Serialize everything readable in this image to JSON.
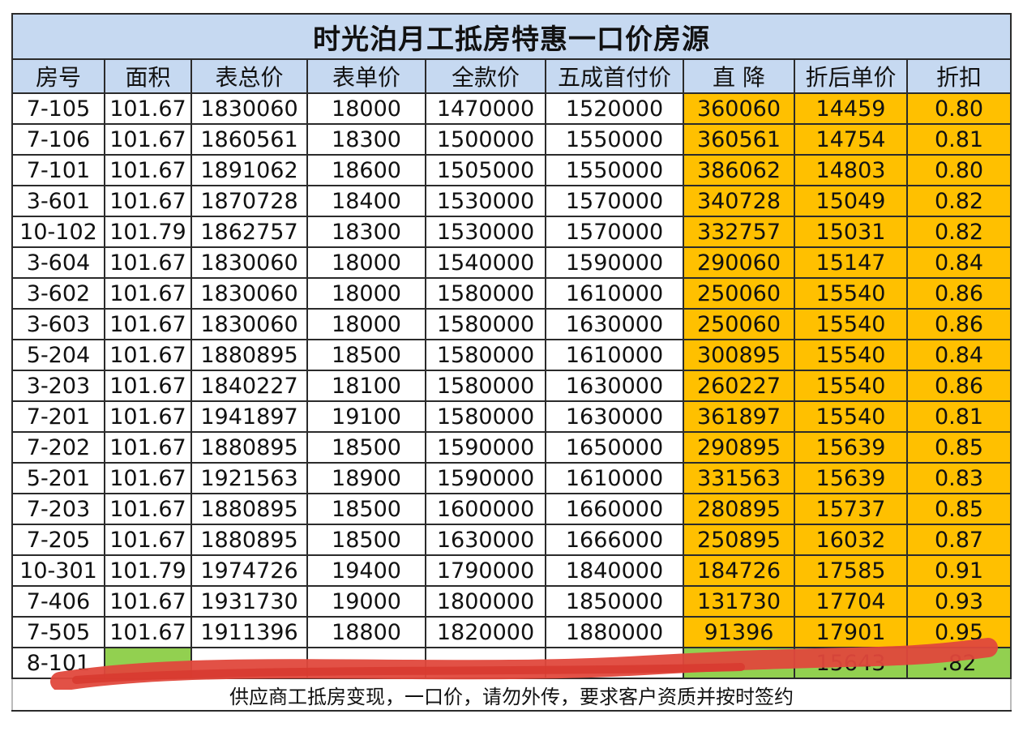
{
  "title": "时光泊月工抵房特惠一口价房源",
  "headers": [
    "房号",
    "面积",
    "表总价",
    "表单价",
    "全款价",
    "五成首付价",
    "直 降",
    "折后单价",
    "折扣"
  ],
  "rows": [
    [
      "7-105",
      "101.67",
      "1830060",
      "18000",
      "1470000",
      "1520000",
      "360060",
      "14459",
      "0.80"
    ],
    [
      "7-106",
      "101.67",
      "1860561",
      "18300",
      "1500000",
      "1550000",
      "360561",
      "14754",
      "0.81"
    ],
    [
      "7-101",
      "101.67",
      "1891062",
      "18600",
      "1505000",
      "1550000",
      "386062",
      "14803",
      "0.80"
    ],
    [
      "3-601",
      "101.67",
      "1870728",
      "18400",
      "1530000",
      "1570000",
      "340728",
      "15049",
      "0.82"
    ],
    [
      "10-102",
      "101.79",
      "1862757",
      "18300",
      "1530000",
      "1570000",
      "332757",
      "15031",
      "0.82"
    ],
    [
      "3-604",
      "101.67",
      "1830060",
      "18000",
      "1540000",
      "1590000",
      "290060",
      "15147",
      "0.84"
    ],
    [
      "3-602",
      "101.67",
      "1830060",
      "18000",
      "1580000",
      "1610000",
      "250060",
      "15540",
      "0.86"
    ],
    [
      "3-603",
      "101.67",
      "1830060",
      "18000",
      "1580000",
      "1630000",
      "250060",
      "15540",
      "0.86"
    ],
    [
      "5-204",
      "101.67",
      "1880895",
      "18500",
      "1580000",
      "1610000",
      "300895",
      "15540",
      "0.84"
    ],
    [
      "3-203",
      "101.67",
      "1840227",
      "18100",
      "1580000",
      "1630000",
      "260227",
      "15540",
      "0.86"
    ],
    [
      "7-201",
      "101.67",
      "1941897",
      "19100",
      "1580000",
      "1630000",
      "361897",
      "15540",
      "0.81"
    ],
    [
      "7-202",
      "101.67",
      "1880895",
      "18500",
      "1590000",
      "1650000",
      "290895",
      "15639",
      "0.85"
    ],
    [
      "5-201",
      "101.67",
      "1921563",
      "18900",
      "1590000",
      "1610000",
      "331563",
      "15639",
      "0.83"
    ],
    [
      "7-203",
      "101.67",
      "1880895",
      "18500",
      "1600000",
      "1660000",
      "280895",
      "15737",
      "0.85"
    ],
    [
      "7-205",
      "101.67",
      "1880895",
      "18500",
      "1630000",
      "1666000",
      "250895",
      "16032",
      "0.87"
    ],
    [
      "10-301",
      "101.79",
      "1974726",
      "19400",
      "1790000",
      "1840000",
      "184726",
      "17585",
      "0.91"
    ],
    [
      "7-406",
      "101.67",
      "1931730",
      "19000",
      "1800000",
      "1850000",
      "131730",
      "17704",
      "0.93"
    ],
    [
      "7-505",
      "101.67",
      "1911396",
      "18800",
      "1820000",
      "1880000",
      "91396",
      "17901",
      "0.95"
    ]
  ],
  "partial_row": [
    "8-101",
    "",
    "",
    "",
    "",
    "",
    "",
    "15643",
    ".82"
  ],
  "footer": "供应商工抵房变现，一口价，请勿外传，要求客户资质并按时签约",
  "colors": {
    "header_bg": "#c6d9f1",
    "highlight_bg": "#ffc000",
    "partial_highlight_bg": "#92d050",
    "scribble": "#e0483c"
  }
}
